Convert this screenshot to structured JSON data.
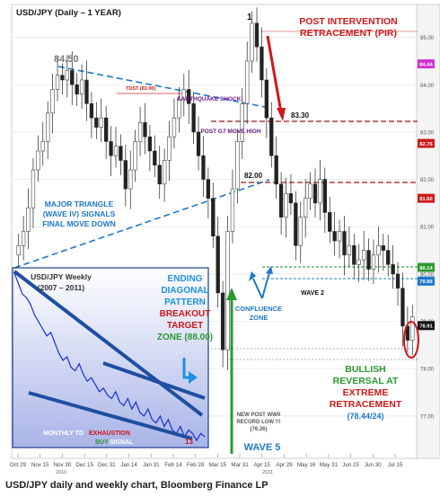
{
  "chart_data": [
    {
      "type": "candlestick",
      "title": "USD/JPY (Daily – 1 YEAR)",
      "y_ticks": [
        "85.00",
        "84.00",
        "83.00",
        "82.00",
        "81.00",
        "80.00",
        "79.00",
        "78.00",
        "77.00"
      ],
      "x_ticks": [
        "Oct 29",
        "Nov 15",
        "Nov 30",
        "Dec 15",
        "Dec 31",
        "Jan 14",
        "Jan 31",
        "Feb 14",
        "Feb 28",
        "Mar 15",
        "Mar 31",
        "Apr 15",
        "Apr 29",
        "May 16",
        "May 31",
        "Jun 15",
        "Jun 30",
        "Jul 15"
      ],
      "x_year_labels": [
        "2010",
        "2011"
      ],
      "ylim": [
        76.2,
        85.6
      ],
      "price_tags": [
        "84.44",
        "82.76",
        "81.60",
        "80.14",
        "79.85",
        "78.91"
      ],
      "closes": [
        80.6,
        80.9,
        81.4,
        82.2,
        82.6,
        82.8,
        83.4,
        83.9,
        84.2,
        84.1,
        84.3,
        84.0,
        83.8,
        84.1,
        83.6,
        83.3,
        83.1,
        83.3,
        82.8,
        82.5,
        82.7,
        82.4,
        81.8,
        82.2,
        82.8,
        83.2,
        82.9,
        82.6,
        82.3,
        81.9,
        82.4,
        82.9,
        83.3,
        83.7,
        83.9,
        83.6,
        83.0,
        82.5,
        82.0,
        81.6,
        80.8,
        79.6,
        78.4,
        80.9,
        81.8,
        82.8,
        83.6,
        84.5,
        85.3,
        84.8,
        84.1,
        83.3,
        82.5,
        81.9,
        81.2,
        81.7,
        81.5,
        80.6,
        81.2,
        81.6,
        81.9,
        81.5,
        82.0,
        81.3,
        80.9,
        80.7,
        80.9,
        80.4,
        80.6,
        80.2,
        80.3,
        80.5,
        80.1,
        80.4,
        80.6,
        80.5,
        80.2,
        80.0,
        79.7,
        78.9,
        78.6,
        79.1
      ],
      "annotations": [
        {
          "text": "84.50"
        },
        {
          "text": "TDST (83.90)"
        },
        {
          "text": "EARTHQUAKE SHOCK!"
        },
        {
          "text": "POST G7 MOVE HIGH"
        },
        {
          "text": "1"
        },
        {
          "text": "POST INTERVENTION"
        },
        {
          "text": "RETRACEMENT (PIR)"
        },
        {
          "text": "83.30"
        },
        {
          "text": "82.00"
        },
        {
          "text": "MAJOR TRIANGLE"
        },
        {
          "text": "(WAVE IV) SIGNALS"
        },
        {
          "text": "FINAL MOVE DOWN"
        },
        {
          "text": "ENDING"
        },
        {
          "text": "DIAGONAL"
        },
        {
          "text": "PATTERN"
        },
        {
          "text": "BREAKOUT"
        },
        {
          "text": "TARGET"
        },
        {
          "text": "ZONE (88.00)"
        },
        {
          "text": "CONFLUENCE"
        },
        {
          "text": "ZONE"
        },
        {
          "text": "WAVE 2"
        },
        {
          "text": "NEW POST WWII"
        },
        {
          "text": "RECORD LOW !!!"
        },
        {
          "text": "(76.26)"
        },
        {
          "text": "WAVE 5"
        },
        {
          "text": "BULLISH"
        },
        {
          "text": "REVERSAL AT"
        },
        {
          "text": "EXTREME"
        },
        {
          "text": "RETRACEMENT"
        },
        {
          "text": "(78.44/24)"
        }
      ]
    },
    {
      "type": "line",
      "title": "USD/JPY Weekly",
      "subtitle": "(2007 – 2011)",
      "values": [
        124,
        121,
        118,
        117,
        115,
        112,
        110,
        108,
        106,
        107,
        104,
        101,
        99,
        100,
        97,
        96,
        98,
        95,
        93,
        94,
        92,
        90,
        91,
        89,
        88,
        90,
        87,
        86,
        88,
        85,
        87,
        84,
        83,
        85,
        82,
        81,
        83,
        80,
        82,
        79,
        78,
        80,
        77,
        79,
        78,
        76,
        78,
        77
      ],
      "annotations": [
        {
          "text": "MONTHLY TD"
        },
        {
          "text": "EXHAUSTION"
        },
        {
          "text": "BUY"
        },
        {
          "text": "SIGNAL"
        },
        {
          "text": "13"
        }
      ]
    }
  ],
  "caption": "USD/JPY daily and weekly chart, Bloomberg Finance LP"
}
